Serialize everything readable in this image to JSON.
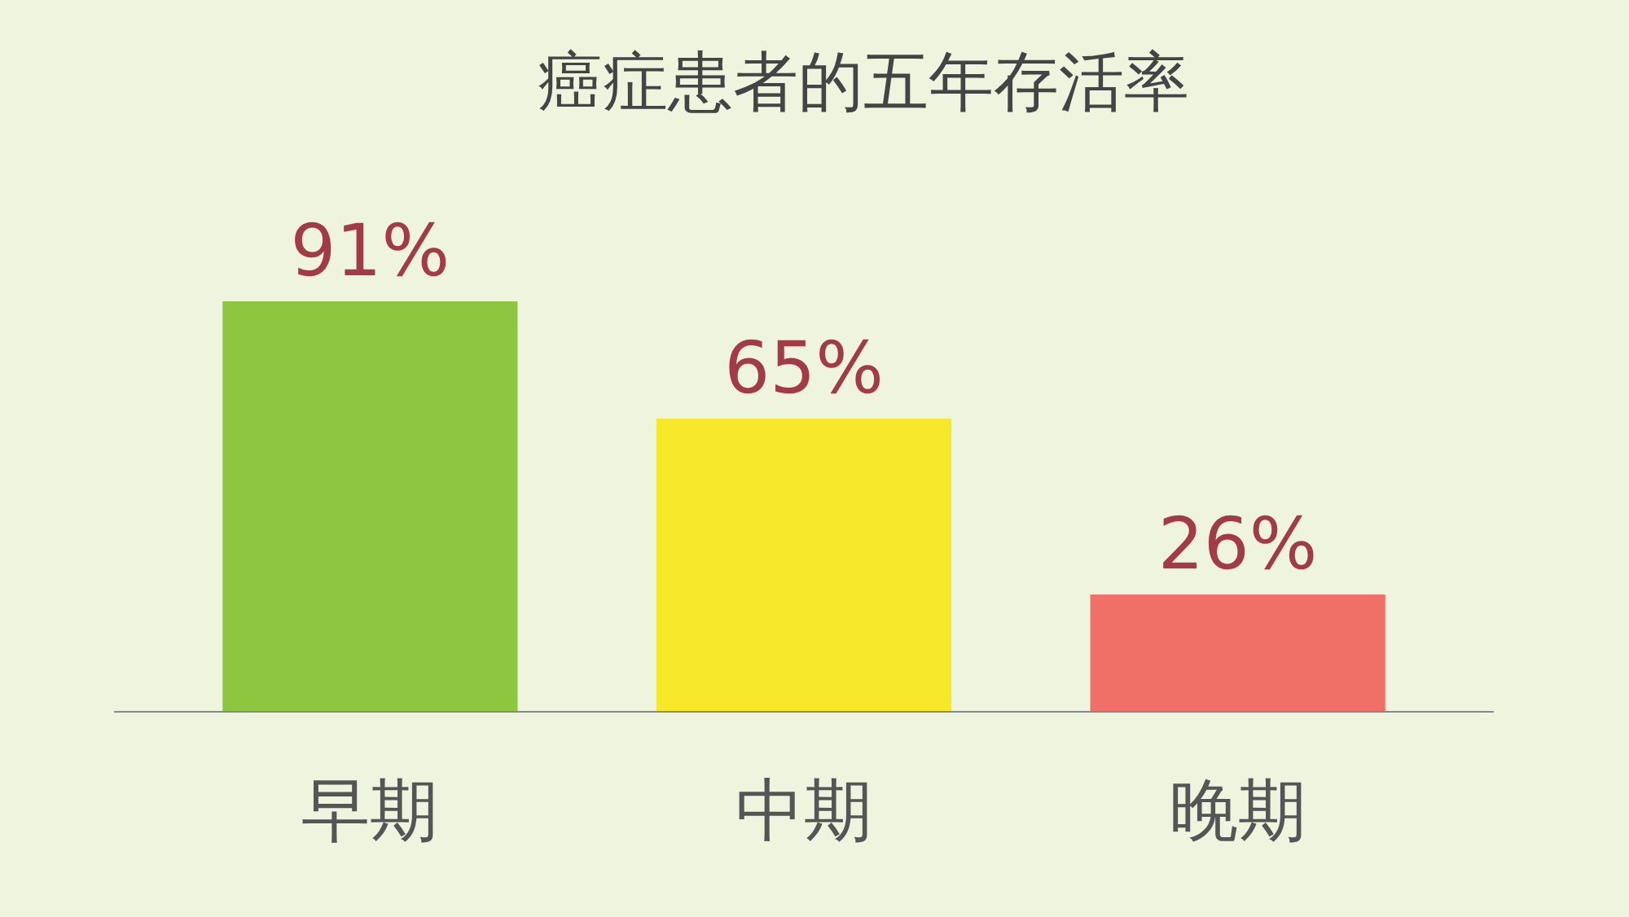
{
  "chart_data": {
    "type": "bar",
    "title": "癌症患者的五年存活率",
    "categories": [
      "早期",
      "中期",
      "晚期"
    ],
    "values": [
      91,
      65,
      26
    ],
    "colors": [
      "#8dc63f",
      "#f7e92a",
      "#f07068"
    ],
    "value_labels": [
      "91%",
      "65%",
      "26%"
    ]
  }
}
